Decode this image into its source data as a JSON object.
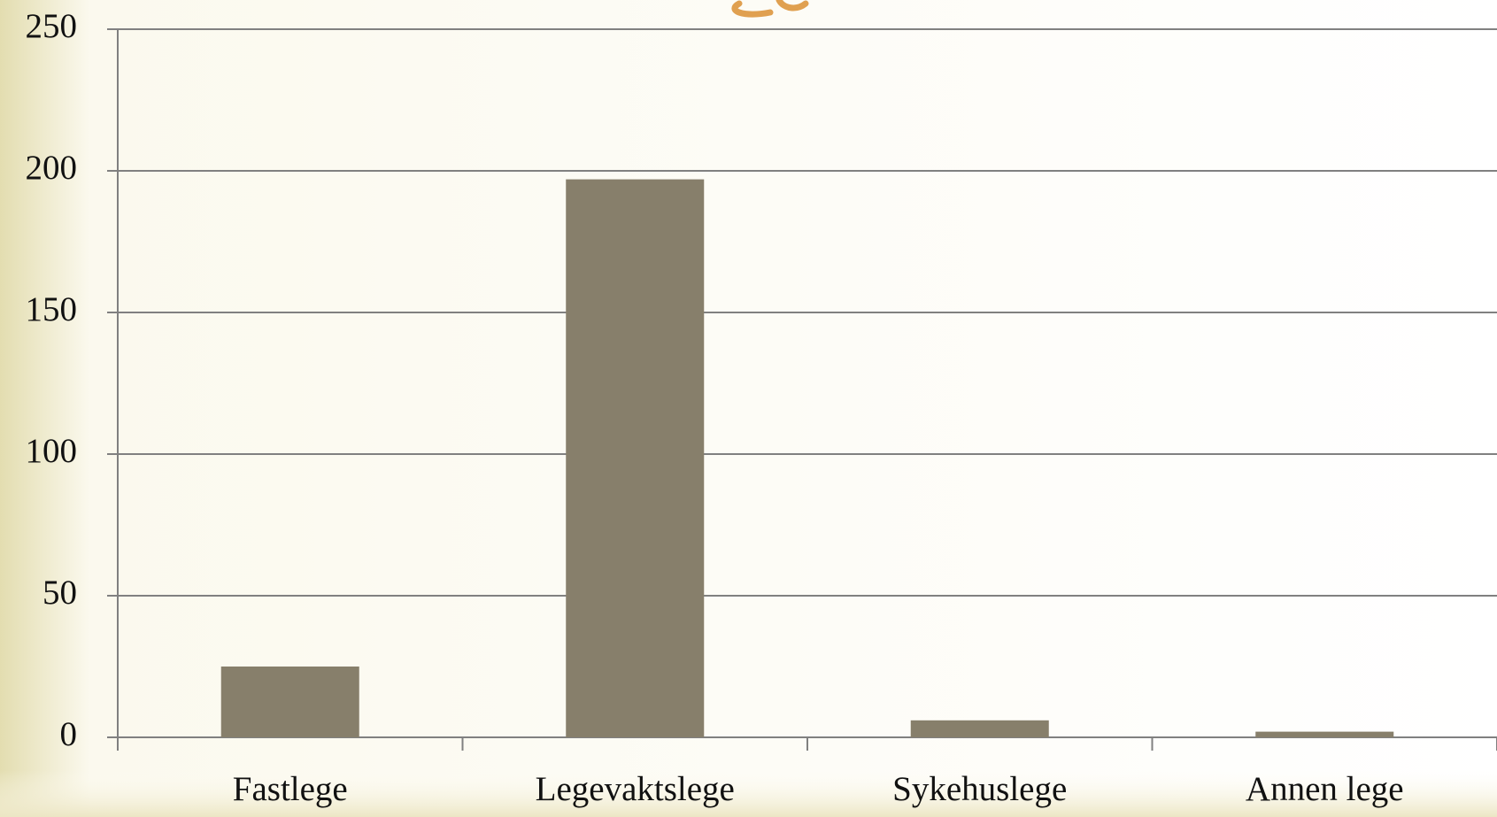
{
  "chart_data": {
    "type": "bar",
    "categories": [
      "Fastlege",
      "Legevaktslege",
      "Sykehuslege",
      "Annen lege"
    ],
    "values": [
      25,
      197,
      6,
      2
    ],
    "color": "#877f6b",
    "ylim": [
      0,
      250
    ],
    "yticks": [
      0,
      50,
      100,
      150,
      200,
      250
    ],
    "grid": true
  }
}
